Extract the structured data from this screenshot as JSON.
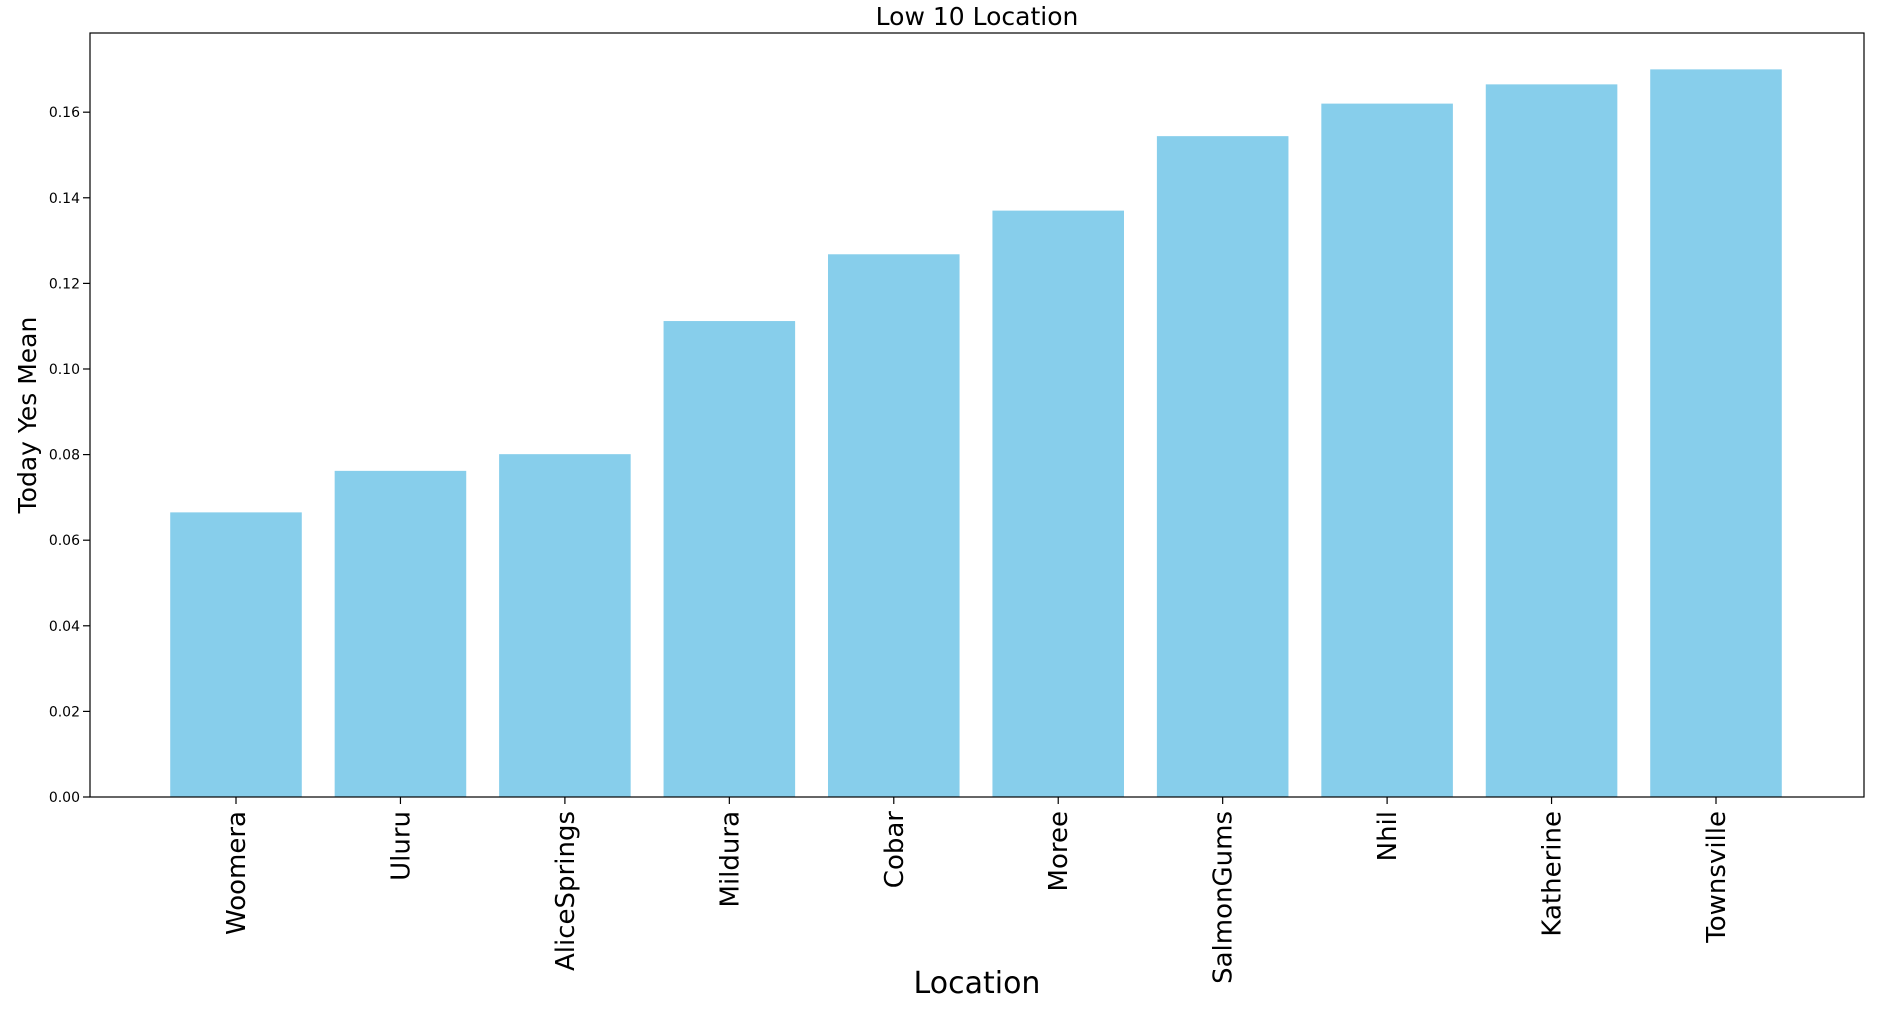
{
  "chart_data": {
    "type": "bar",
    "title": "Low 10 Location",
    "xlabel": "Location",
    "ylabel": "Today Yes Mean",
    "categories": [
      "Woomera",
      "Uluru",
      "AliceSprings",
      "Mildura",
      "Cobar",
      "Moree",
      "SalmonGums",
      "Nhil",
      "Katherine",
      "Townsville"
    ],
    "values": [
      0.0665,
      0.0762,
      0.0801,
      0.1112,
      0.1268,
      0.137,
      0.1544,
      0.162,
      0.1665,
      0.17
    ],
    "yticks": [
      "0.00",
      "0.02",
      "0.04",
      "0.06",
      "0.08",
      "0.10",
      "0.12",
      "0.14",
      "0.16"
    ],
    "ylim": [
      0,
      0.1785
    ],
    "grid": false,
    "bar_color": "#87CEEB"
  }
}
